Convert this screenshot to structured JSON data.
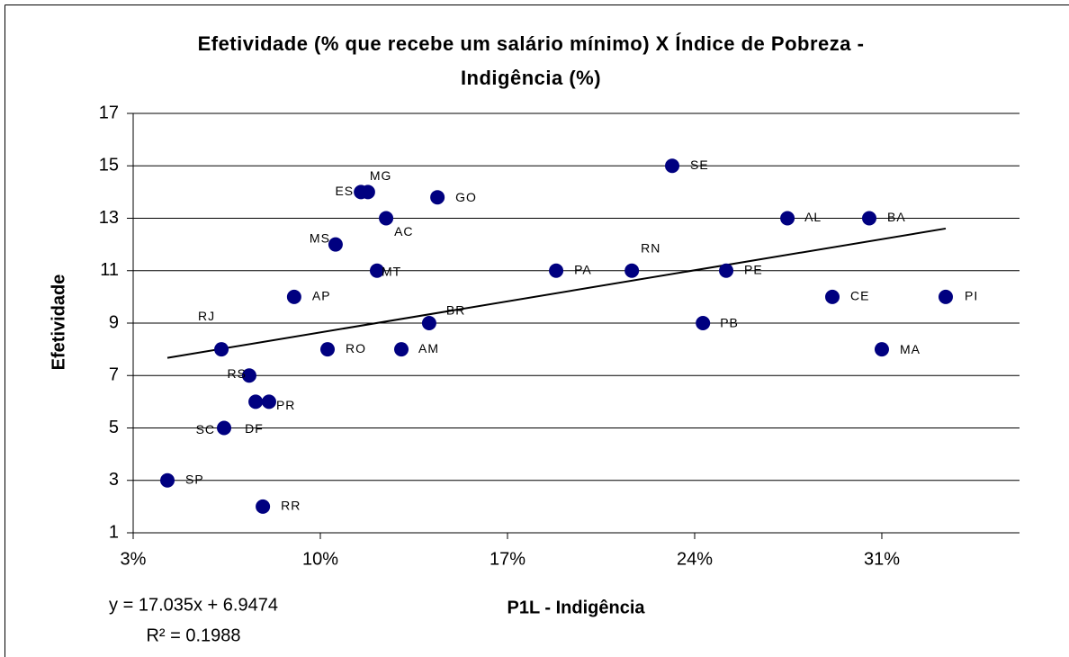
{
  "chart_data": {
    "type": "scatter",
    "title": [
      "Efetividade (% que recebe um salário mínimo) X Índice de Pobreza -",
      "Indigência (%)"
    ],
    "x_label": "P1L - Indigência",
    "y_label": "Efetividade",
    "trendline_equation": "y = 17.035x + 6.9474",
    "trendline_r2": "R² = 0.1988",
    "color": "#000080",
    "grid": true,
    "xlim": [
      3,
      36.15
    ],
    "ylim": [
      1,
      17
    ],
    "xticks": [
      {
        "value": 3,
        "label": "3%"
      },
      {
        "value": 10,
        "label": "10%"
      },
      {
        "value": 17,
        "label": "17%"
      },
      {
        "value": 24,
        "label": "24%"
      },
      {
        "value": 31,
        "label": "31%"
      }
    ],
    "yticks": [
      1,
      3,
      5,
      7,
      9,
      11,
      13,
      15,
      17
    ],
    "labels": [
      "SP",
      "RR",
      "SC",
      "DF",
      "RS",
      "PR",
      "RJ",
      "RO",
      "AM",
      "AP",
      "MS",
      "MT",
      "ES",
      "MG",
      "AC",
      "GO",
      "BR",
      "PA",
      "RN",
      "SE",
      "AL",
      "BA",
      "PE",
      "CE",
      "PI",
      "PB",
      "MA"
    ],
    "x": [
      4.28,
      7.85,
      6.4,
      7.58,
      7.34,
      8.08,
      6.3,
      10.27,
      13.03,
      9.02,
      10.57,
      12.12,
      11.52,
      11.78,
      12.46,
      14.38,
      14.07,
      18.82,
      21.65,
      23.16,
      27.47,
      30.53,
      25.18,
      29.15,
      33.39,
      24.31,
      31.0
    ],
    "values": [
      3,
      2,
      5,
      6,
      7,
      6,
      8,
      8,
      8,
      10,
      12,
      11,
      14,
      14,
      13,
      13.8,
      9,
      11,
      11,
      15,
      13,
      13,
      11,
      10,
      10,
      9,
      8
    ]
  }
}
